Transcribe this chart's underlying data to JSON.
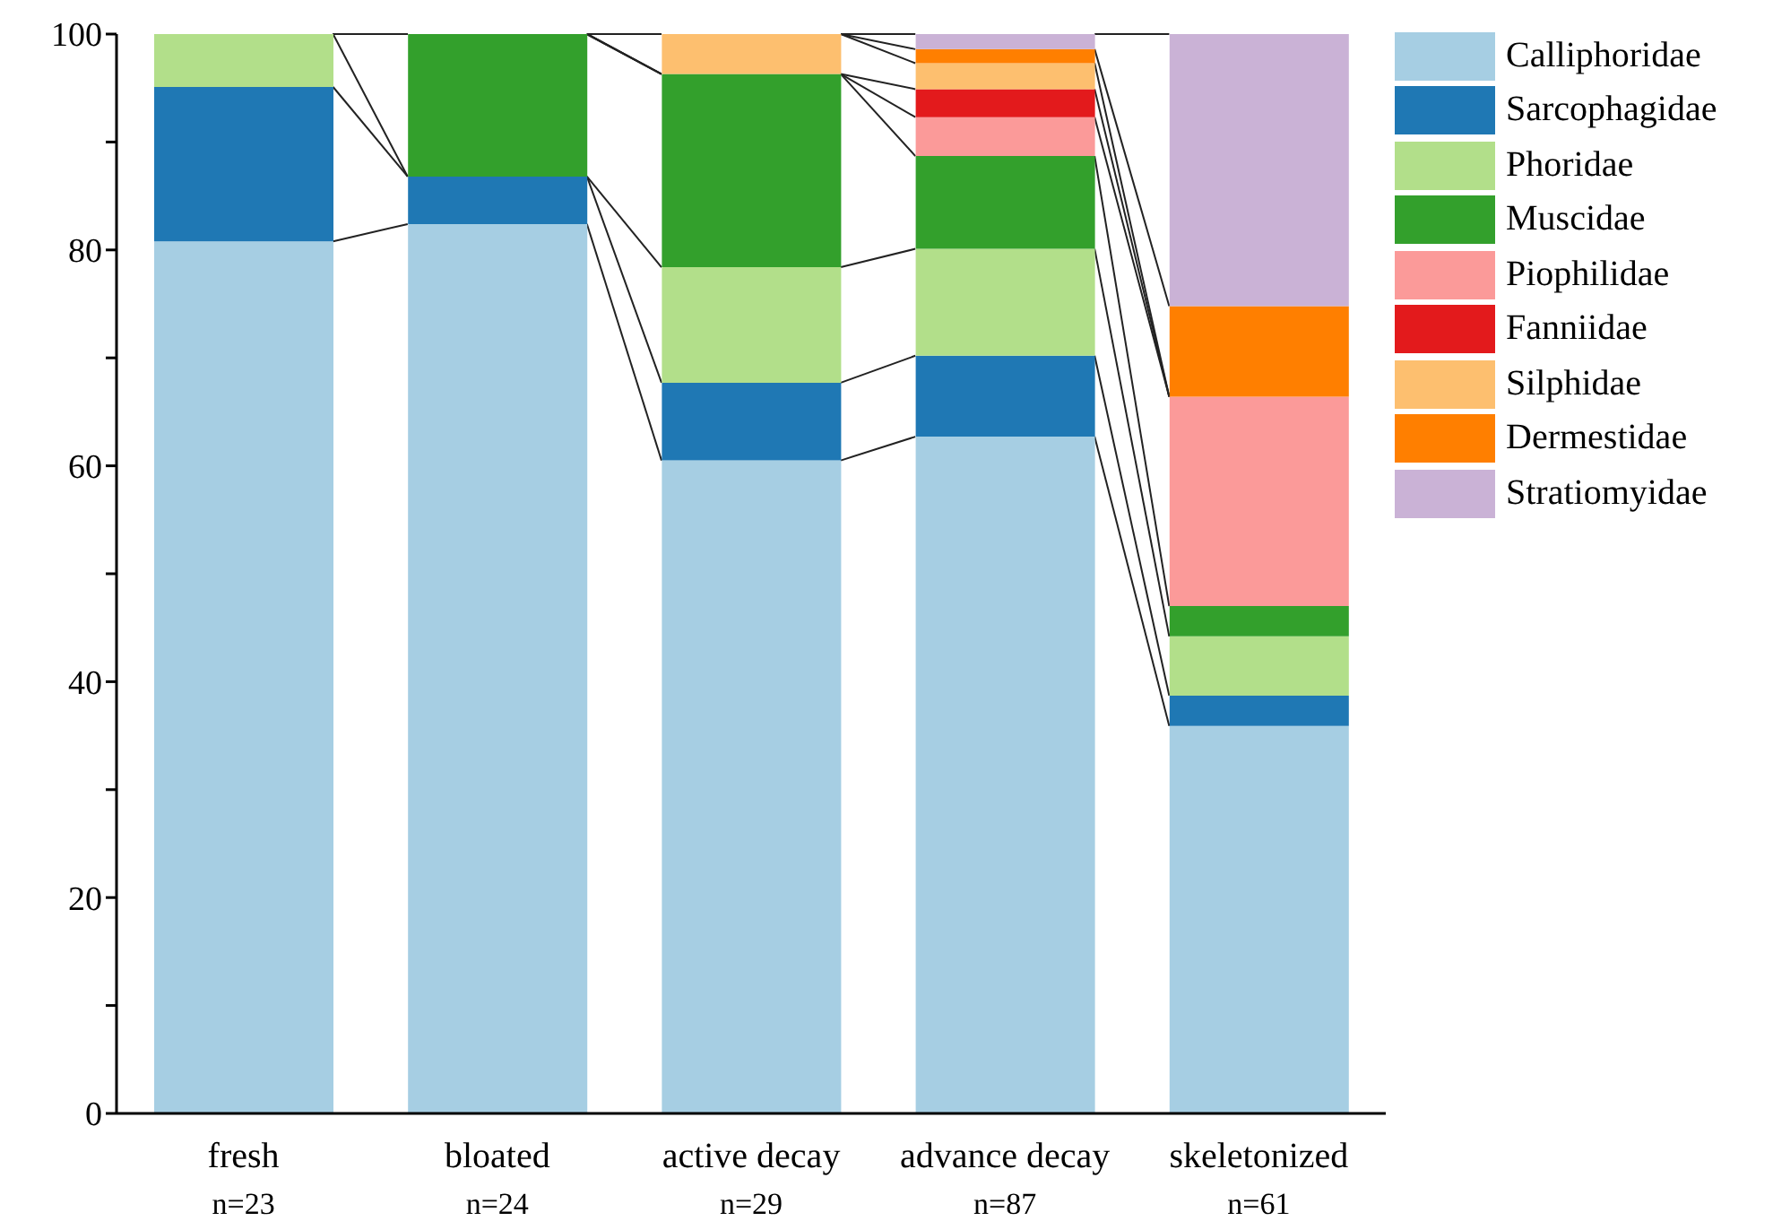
{
  "chart_data": {
    "type": "bar",
    "stacked": true,
    "categories": [
      "fresh\nn=23",
      "bloated\nn=24",
      "active decay\nn=29",
      "advance decay\nn=87",
      "skeletonized\nn=61"
    ],
    "series": [
      {
        "name": "Calliphoridae",
        "color": "#a6cee3",
        "values": [
          80.8,
          82.4,
          60.5,
          62.7,
          35.9
        ]
      },
      {
        "name": "Sarcophagidae",
        "color": "#1f78b4",
        "values": [
          14.3,
          4.4,
          7.2,
          7.5,
          2.8
        ]
      },
      {
        "name": "Phoridae",
        "color": "#b2df8a",
        "values": [
          4.9,
          0,
          10.7,
          9.9,
          5.5
        ]
      },
      {
        "name": "Muscidae",
        "color": "#33a02c",
        "values": [
          0,
          13.2,
          17.9,
          8.6,
          2.8
        ]
      },
      {
        "name": "Piophilidae",
        "color": "#fb9a99",
        "values": [
          0,
          0,
          0,
          3.6,
          19.4
        ]
      },
      {
        "name": "Fanniidae",
        "color": "#e31a1c",
        "values": [
          0,
          0,
          0,
          2.6,
          0
        ]
      },
      {
        "name": "Silphidae",
        "color": "#fdbf6f",
        "values": [
          0,
          0,
          3.7,
          2.4,
          0
        ]
      },
      {
        "name": "Dermestidae",
        "color": "#ff7f00",
        "values": [
          0,
          0,
          0,
          1.3,
          8.4
        ]
      },
      {
        "name": "Stratiomyidae",
        "color": "#cab2d6",
        "values": [
          0,
          0,
          0,
          1.4,
          25.2
        ]
      }
    ],
    "ylim": [
      0,
      100
    ],
    "yticks": [
      0,
      {
        "value": 10,
        "label": null
      },
      20,
      {
        "value": 30,
        "label": null
      },
      40,
      {
        "value": 50,
        "label": null
      },
      60,
      {
        "value": 70,
        "label": null
      },
      80,
      {
        "value": 90,
        "label": null
      },
      100
    ],
    "grid": false,
    "legend": "top right"
  }
}
